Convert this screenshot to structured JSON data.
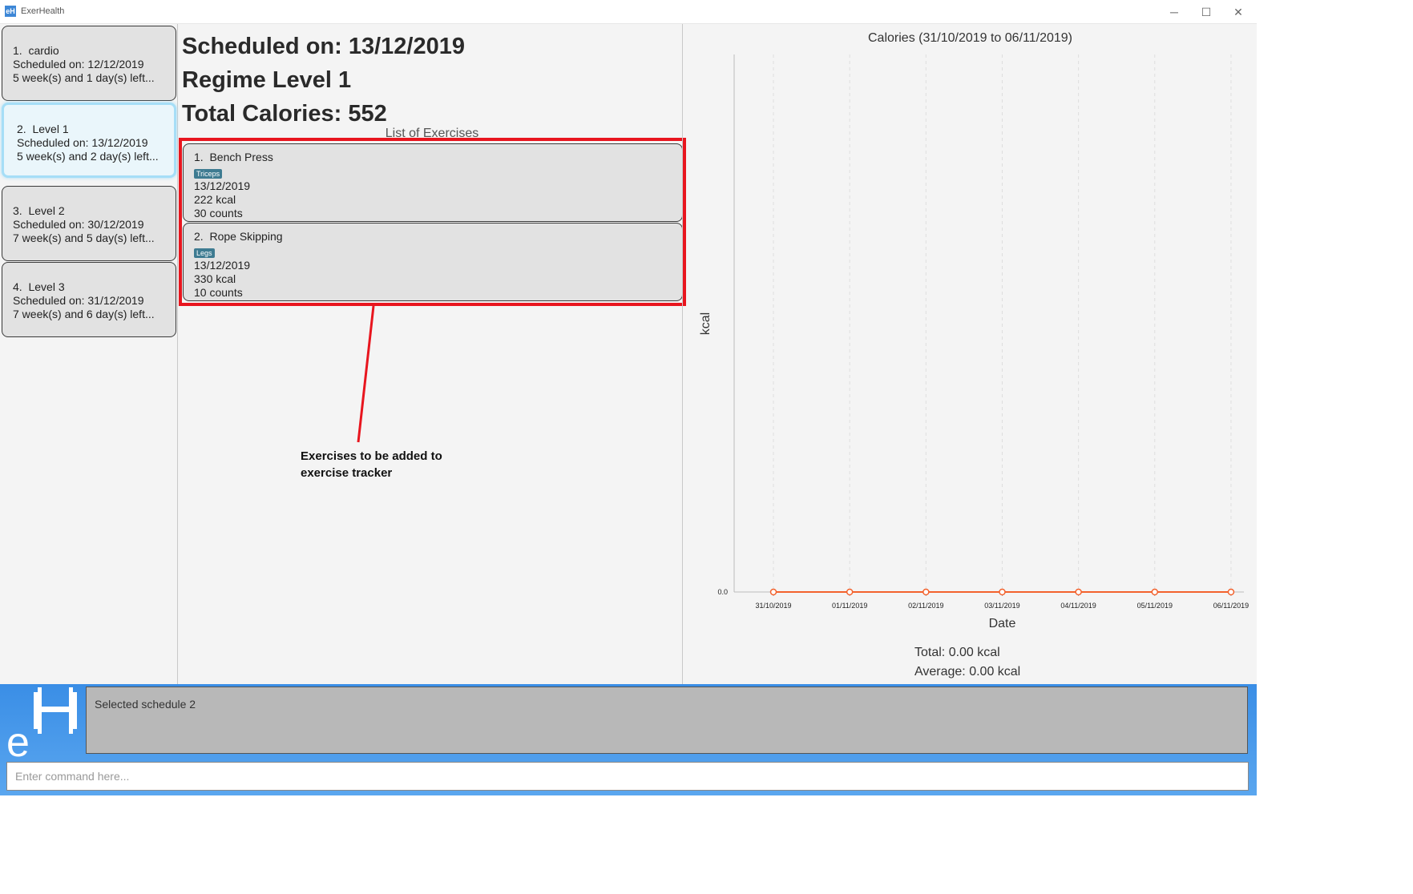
{
  "window": {
    "title": "ExerHealth",
    "app_icon_text": "eH",
    "min_label": "─",
    "max_label": "☐",
    "close_label": "✕"
  },
  "schedules": [
    {
      "index": "1.",
      "name": "cardio",
      "scheduled": "Scheduled on: 12/12/2019",
      "remaining": "5 week(s) and 1 day(s) left..."
    },
    {
      "index": "2.",
      "name": "Level 1",
      "scheduled": "Scheduled on: 13/12/2019",
      "remaining": "5 week(s) and 2 day(s) left..."
    },
    {
      "index": "3.",
      "name": "Level 2",
      "scheduled": "Scheduled on: 30/12/2019",
      "remaining": "7 week(s) and 5 day(s) left..."
    },
    {
      "index": "4.",
      "name": "Level 3",
      "scheduled": "Scheduled on: 31/12/2019",
      "remaining": "7 week(s) and 6 day(s) left..."
    }
  ],
  "detail": {
    "scheduled_on": "Scheduled on: 13/12/2019",
    "regime": "Regime Level 1",
    "total_calories": "Total Calories: 552",
    "list_title": "List of Exercises",
    "exercises": [
      {
        "index": "1.",
        "name": "Bench Press",
        "tag": "Triceps",
        "date": "13/12/2019",
        "calories": "222 kcal",
        "quantity": "30 counts"
      },
      {
        "index": "2.",
        "name": "Rope Skipping",
        "tag": "Legs",
        "date": "13/12/2019",
        "calories": "330 kcal",
        "quantity": "10 counts"
      }
    ],
    "annotation": "Exercises to be added to exercise tracker"
  },
  "chart_data": {
    "type": "line",
    "title": "Calories (31/10/2019 to 06/11/2019)",
    "xlabel": "Date",
    "ylabel": "kcal",
    "categories": [
      "31/10/2019",
      "01/11/2019",
      "02/11/2019",
      "03/11/2019",
      "04/11/2019",
      "05/11/2019",
      "06/11/2019"
    ],
    "values": [
      0,
      0,
      0,
      0,
      0,
      0,
      0
    ],
    "y_tick_labels": [
      "0.0"
    ],
    "grid": true,
    "line_color": "#f3622d",
    "total": "Total: 0.00 kcal",
    "average": "Average: 0.00 kcal"
  },
  "result": {
    "text": "Selected schedule 2"
  },
  "command": {
    "value": "",
    "placeholder": "Enter command here..."
  }
}
